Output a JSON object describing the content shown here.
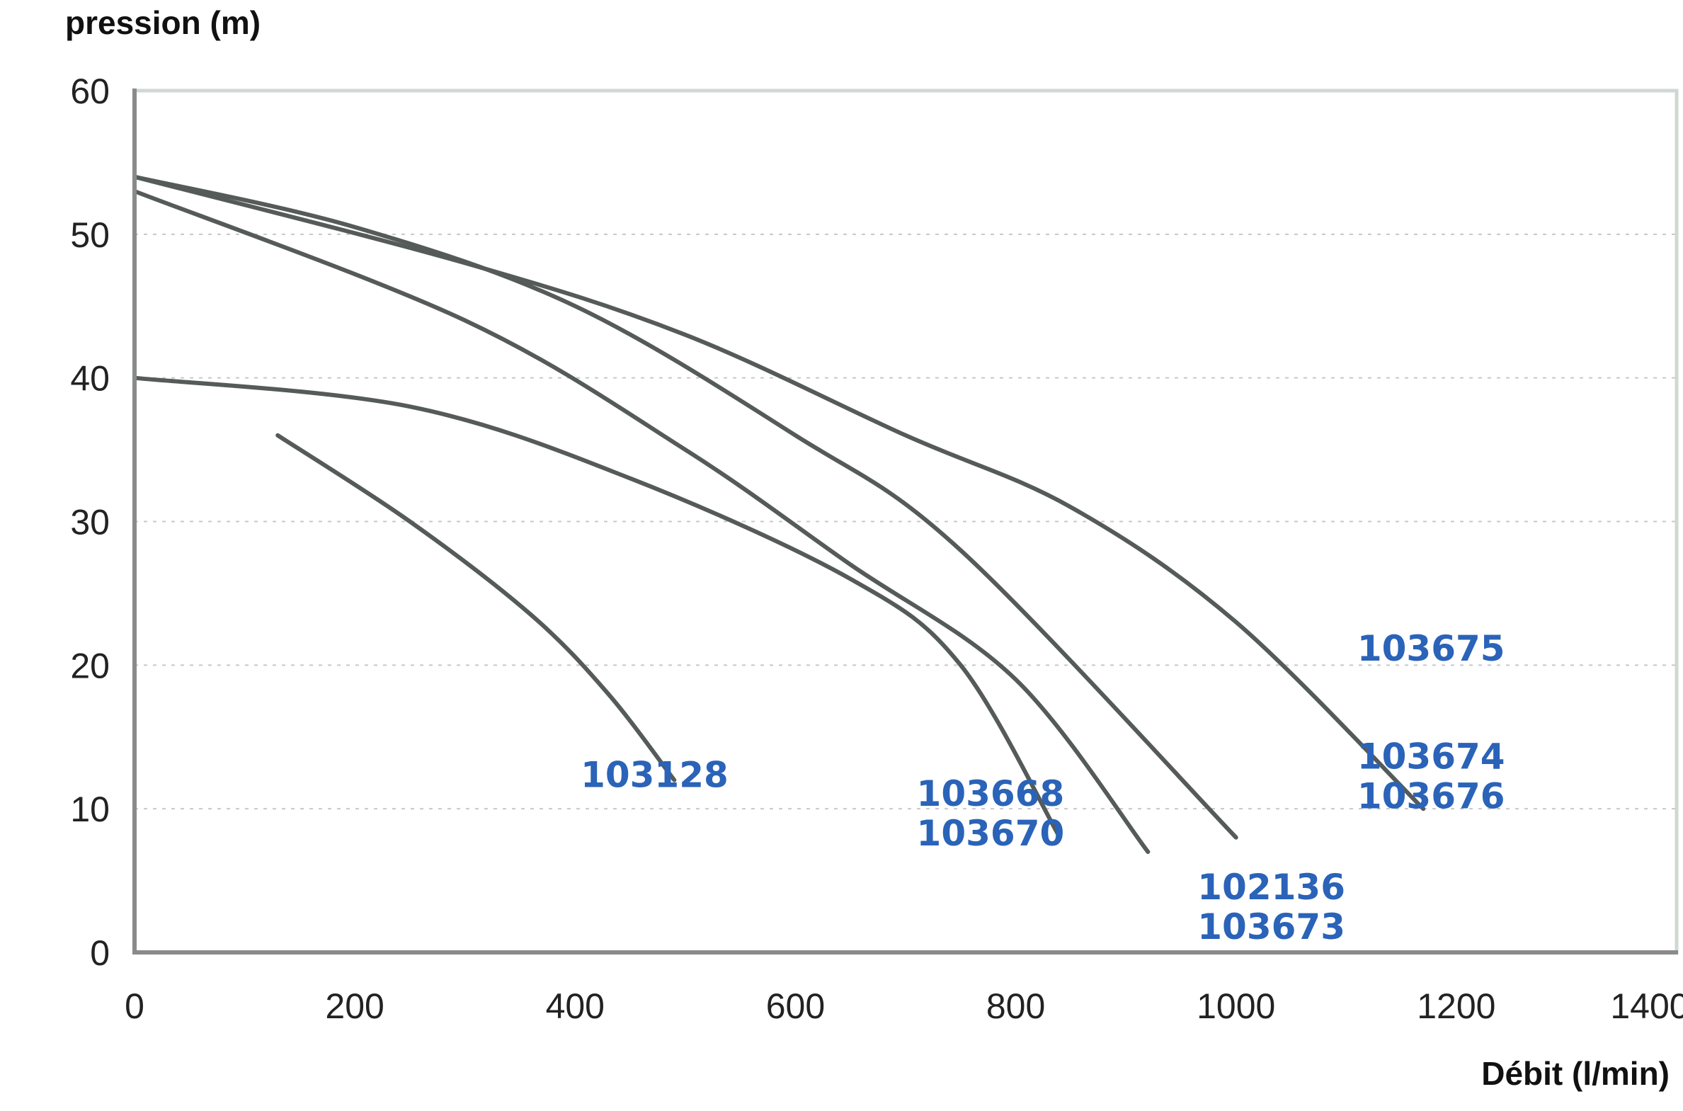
{
  "chart_data": {
    "type": "line",
    "title": "",
    "ylabel": "pression (m)",
    "xlabel": "Débit (l/min)",
    "xlim": [
      0,
      1400
    ],
    "ylim": [
      0,
      60
    ],
    "xticks": [
      0,
      200,
      400,
      600,
      800,
      1000,
      1200,
      1400
    ],
    "yticks": [
      0,
      10,
      20,
      30,
      40,
      50,
      60
    ],
    "grid": "horizontal-dotted",
    "label_color": "#2a63b8",
    "line_color": "#555b58",
    "series": [
      {
        "labels": [
          "103128"
        ],
        "points": [
          [
            130,
            36
          ],
          [
            250,
            30
          ],
          [
            360,
            23.5
          ],
          [
            430,
            18
          ],
          [
            490,
            12
          ]
        ]
      },
      {
        "labels": [
          "103668",
          "103670"
        ],
        "points": [
          [
            0,
            40
          ],
          [
            250,
            38
          ],
          [
            450,
            33
          ],
          [
            650,
            26
          ],
          [
            750,
            20
          ],
          [
            840,
            8
          ]
        ]
      },
      {
        "labels": [
          "102136",
          "103673"
        ],
        "points": [
          [
            0,
            53
          ],
          [
            300,
            44
          ],
          [
            500,
            35
          ],
          [
            650,
            27
          ],
          [
            800,
            19
          ],
          [
            920,
            7
          ]
        ]
      },
      {
        "labels": [
          "103674",
          "103676"
        ],
        "points": [
          [
            0,
            54
          ],
          [
            200,
            50.5
          ],
          [
            400,
            45
          ],
          [
            600,
            36
          ],
          [
            750,
            28
          ],
          [
            1000,
            8
          ]
        ]
      },
      {
        "labels": [
          "103675"
        ],
        "points": [
          [
            0,
            54
          ],
          [
            300,
            48
          ],
          [
            500,
            43
          ],
          [
            700,
            36
          ],
          [
            850,
            31
          ],
          [
            1000,
            23
          ],
          [
            1170,
            10
          ]
        ]
      }
    ],
    "annotations": [
      {
        "series": 0,
        "lines": [
          "103128"
        ],
        "x": 405,
        "y": 11.5
      },
      {
        "series": 1,
        "lines": [
          "103668",
          "103670"
        ],
        "x": 710,
        "y": 10.2
      },
      {
        "series": 2,
        "lines": [
          "102136",
          "103673"
        ],
        "x": 965,
        "y": 3.7
      },
      {
        "series": 3,
        "lines": [
          "103674",
          "103676"
        ],
        "x": 1110,
        "y": 12.8
      },
      {
        "series": 4,
        "lines": [
          "103675"
        ],
        "x": 1110,
        "y": 20.3
      }
    ]
  }
}
